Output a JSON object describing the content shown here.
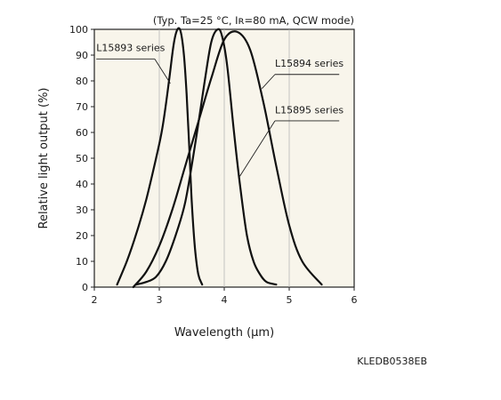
{
  "chart_data": {
    "type": "line",
    "note": "(Typ. Ta=25 °C, Iʀ=80 mA, QCW mode)",
    "xlabel": "Wavelength (μm)",
    "ylabel": "Relative light output (%)",
    "xlim": [
      2,
      6
    ],
    "ylim": [
      0,
      100
    ],
    "xticks": [
      2,
      3,
      4,
      5,
      6
    ],
    "yticks": [
      0,
      10,
      20,
      30,
      40,
      50,
      60,
      70,
      80,
      90,
      100
    ],
    "grid": "vertical",
    "series": [
      {
        "name": "L15893 series",
        "x": [
          2.35,
          2.5,
          2.65,
          2.8,
          2.95,
          3.05,
          3.15,
          3.22,
          3.28,
          3.33,
          3.38,
          3.42,
          3.46,
          3.5,
          3.55,
          3.6,
          3.66
        ],
        "y": [
          1,
          10,
          21,
          34,
          50,
          62,
          80,
          94,
          100,
          99,
          90,
          75,
          55,
          33,
          15,
          5,
          1
        ]
      },
      {
        "name": "L15894 series",
        "x": [
          2.6,
          2.8,
          3.0,
          3.2,
          3.4,
          3.6,
          3.8,
          4.0,
          4.2,
          4.4,
          4.6,
          4.8,
          5.0,
          5.2,
          5.5
        ],
        "y": [
          0,
          6,
          16,
          30,
          47,
          64,
          81,
          96,
          99,
          92,
          72,
          47,
          24,
          10,
          1
        ]
      },
      {
        "name": "L15895 series",
        "x": [
          2.65,
          2.8,
          2.95,
          3.1,
          3.25,
          3.4,
          3.55,
          3.7,
          3.8,
          3.9,
          3.97,
          4.05,
          4.15,
          4.25,
          4.35,
          4.45,
          4.55,
          4.65,
          4.8
        ],
        "y": [
          1,
          2,
          4,
          10,
          20,
          33,
          55,
          80,
          95,
          100,
          97,
          85,
          60,
          38,
          20,
          10,
          5,
          2,
          1
        ]
      }
    ],
    "figure_code": "KLEDB0538EB"
  }
}
